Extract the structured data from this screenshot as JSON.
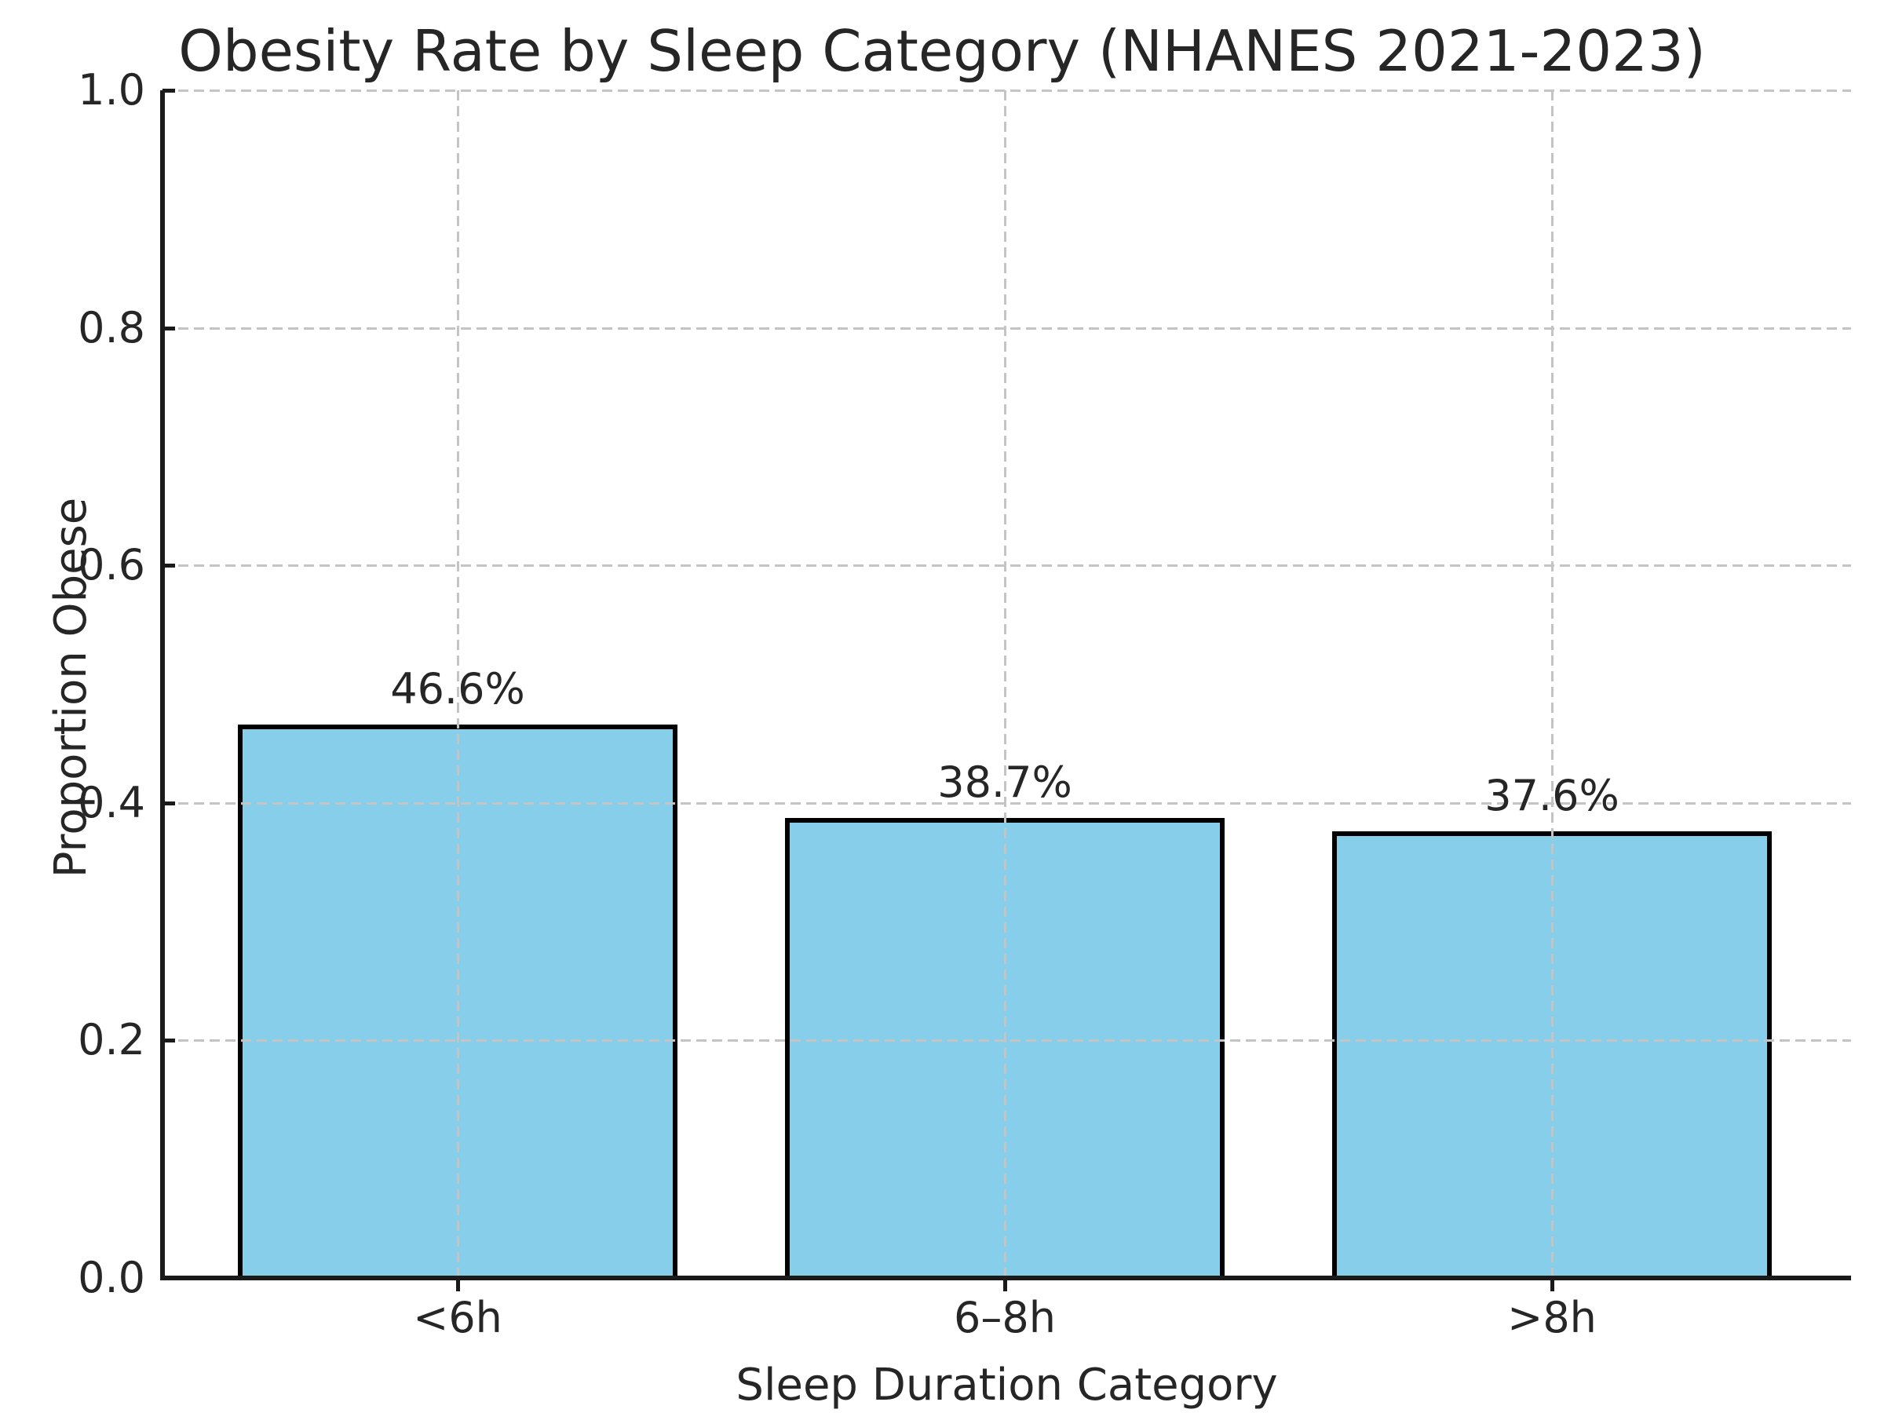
{
  "chart_data": {
    "type": "bar",
    "title": "Obesity Rate by Sleep Category (NHANES 2021-2023)",
    "xlabel": "Sleep Duration Category",
    "ylabel": "Proportion Obese",
    "categories": [
      "<6h",
      "6–8h",
      ">8h"
    ],
    "values": [
      0.466,
      0.387,
      0.376
    ],
    "value_labels": [
      "46.6%",
      "38.7%",
      "37.6%"
    ],
    "ylim": [
      0.0,
      1.0
    ],
    "yticks": [
      0.0,
      0.2,
      0.4,
      0.6,
      0.8,
      1.0
    ],
    "ytick_labels": [
      "0.0",
      "0.2",
      "0.4",
      "0.6",
      "0.8",
      "1.0"
    ],
    "grid": "dashed, drawn above bars, horizontal and vertical",
    "legend": "none",
    "bar_color": "#87CEEB",
    "bar_edge_color": "#000000",
    "grid_color": "#c4c4c4",
    "spine_color": "#1a1a1a",
    "text_color": "#262626",
    "background_color": "#ffffff"
  }
}
